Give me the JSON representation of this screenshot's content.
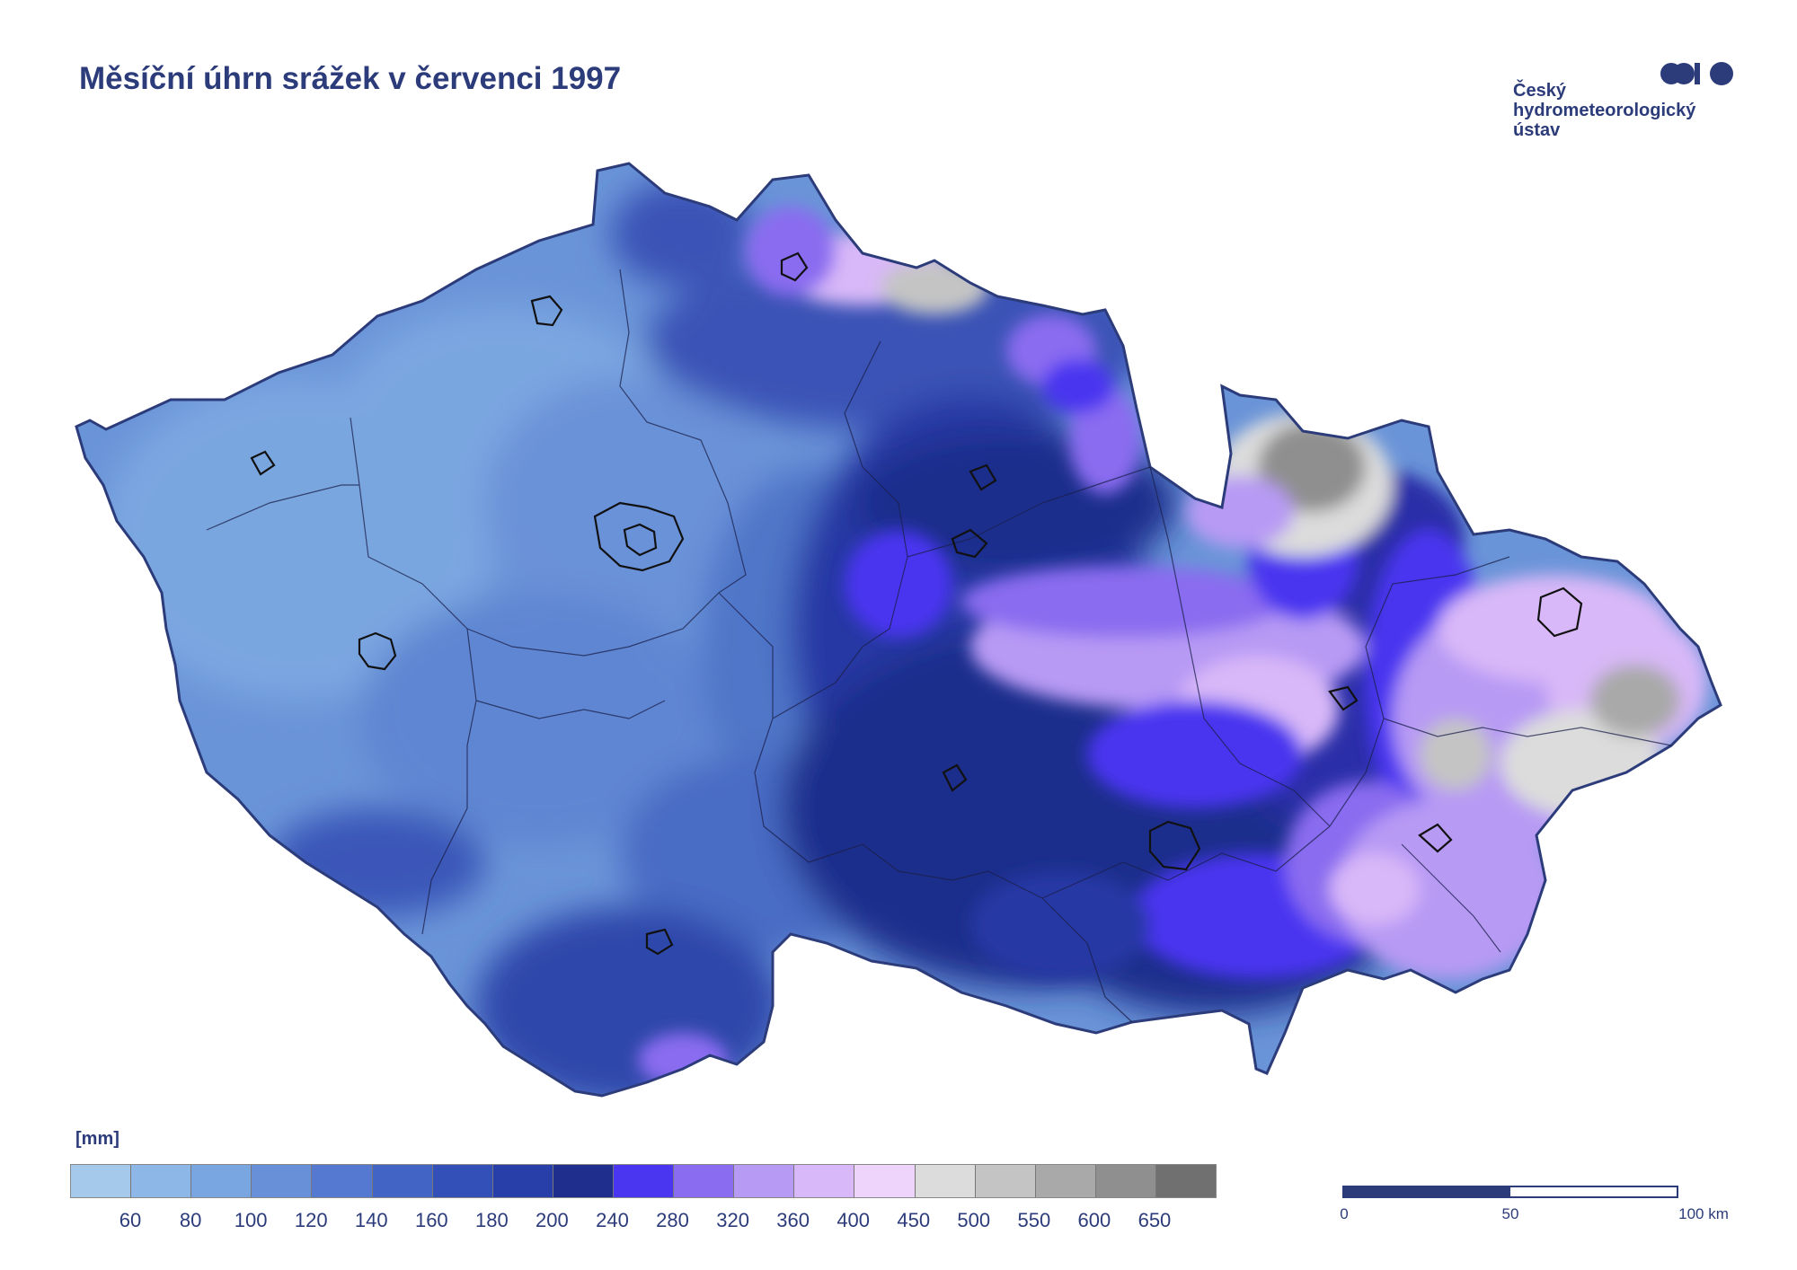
{
  "title": "Měsíční úhrn srážek v červenci 1997",
  "logo": {
    "lines": [
      "Český",
      "hydrometeorologický",
      "ústav"
    ],
    "color": "#2c3b7a"
  },
  "legend": {
    "unit": "[mm]",
    "colors": [
      "#a5c9ea",
      "#8db7e6",
      "#79a6e0",
      "#6890d8",
      "#5579d0",
      "#4264c4",
      "#3350b8",
      "#283ea8",
      "#1f2d8c",
      "#4a35f0",
      "#8a6cf0",
      "#b79af4",
      "#d8b8f8",
      "#eed3fa",
      "#dcdcdc",
      "#c4c4c4",
      "#a9a9a9",
      "#8f8f8f",
      "#707070"
    ],
    "labels": [
      "60",
      "80",
      "100",
      "120",
      "140",
      "160",
      "180",
      "200",
      "240",
      "280",
      "320",
      "360",
      "400",
      "450",
      "500",
      "550",
      "600",
      "650"
    ]
  },
  "scale_bar": {
    "labels": [
      "0",
      "50",
      "100 km"
    ]
  }
}
